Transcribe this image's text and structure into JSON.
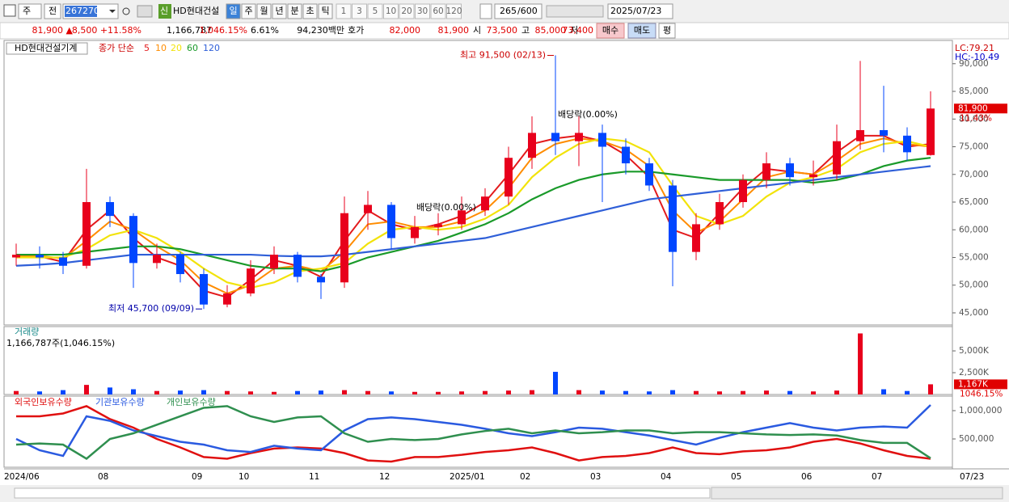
{
  "toolbar": {
    "period": "주",
    "prev": "전",
    "code": "267270",
    "badge": "신",
    "name": "HD현대건설",
    "units": [
      "일",
      "주",
      "월",
      "년",
      "분",
      "초",
      "틱"
    ],
    "minutes": [
      "1",
      "3",
      "5",
      "10",
      "20",
      "30",
      "60",
      "120"
    ],
    "count": "265",
    "max": "/600",
    "date": "2025/07/23"
  },
  "info": {
    "price": "81,900 ▲",
    "change": "8,500 +11.58%",
    "volume": "1,166,787",
    "volume_ratio": "1,046.15%",
    "turnover": "6.61%",
    "amount": "94,230백만",
    "quote_label": "호가",
    "ask": "82,000",
    "bid": "81,900",
    "open_label": "시",
    "open": "73,500",
    "high_label": "고",
    "high": "85,000",
    "low_label": "저",
    "low": "73,400",
    "buy": "매수",
    "sell": "매도",
    "avg": "평"
  },
  "chart_data": [
    {
      "type": "candlestick",
      "title": "HD현대건설기계",
      "ma_label": "종가 단순",
      "categories": [
        "2024/06",
        null,
        null,
        null,
        "08",
        null,
        null,
        null,
        "09",
        null,
        "10",
        null,
        null,
        "11",
        null,
        null,
        "12",
        null,
        null,
        "2025/01",
        null,
        null,
        "02",
        null,
        null,
        "03",
        null,
        null,
        "04",
        null,
        null,
        "05",
        null,
        null,
        "06",
        null,
        null,
        "07",
        null,
        null
      ],
      "open": [
        55000,
        55500,
        55000,
        53500,
        65000,
        62500,
        54000,
        55500,
        52000,
        46500,
        48500,
        53000,
        55500,
        51500,
        50500,
        63000,
        64500,
        58500,
        60500,
        61000,
        63500,
        66000,
        73000,
        77500,
        76000,
        77500,
        75000,
        72000,
        68000,
        56000,
        61000,
        65000,
        69000,
        72000,
        69500,
        70000,
        76000,
        78000,
        77000,
        73500
      ],
      "high": [
        57500,
        57000,
        56000,
        71000,
        66000,
        63000,
        57500,
        56000,
        53000,
        50000,
        54500,
        57000,
        56000,
        52000,
        66000,
        67000,
        65000,
        62500,
        63000,
        66000,
        67500,
        75000,
        80500,
        91500,
        80500,
        79000,
        76500,
        73000,
        69000,
        63000,
        66500,
        70000,
        74000,
        73000,
        72500,
        79000,
        90500,
        86000,
        78500,
        85000
      ],
      "low": [
        53500,
        53000,
        52000,
        53000,
        60500,
        49500,
        53000,
        50500,
        45700,
        46000,
        48000,
        52000,
        50500,
        47500,
        49500,
        60000,
        56500,
        57500,
        59000,
        60000,
        62500,
        64500,
        71000,
        73500,
        71500,
        65000,
        70000,
        67000,
        49800,
        54500,
        60000,
        64000,
        67500,
        68000,
        68000,
        69000,
        74500,
        74000,
        72500,
        73400
      ],
      "close": [
        55500,
        55000,
        53500,
        65000,
        62500,
        54000,
        55500,
        52000,
        46500,
        48500,
        53000,
        55500,
        51500,
        50500,
        63000,
        64500,
        58500,
        60500,
        61000,
        63500,
        66000,
        73000,
        77500,
        76000,
        77500,
        75000,
        72000,
        68000,
        56000,
        61000,
        65000,
        69000,
        72000,
        69500,
        70000,
        76000,
        78000,
        77000,
        74000,
        81900
      ],
      "series": [
        {
          "name": "5",
          "color": "#e31a1c",
          "values": [
            55000,
            55200,
            54200,
            60000,
            63500,
            58500,
            55000,
            53500,
            49000,
            47800,
            51000,
            54500,
            53500,
            51500,
            58000,
            63500,
            61000,
            60000,
            61000,
            62500,
            65000,
            70000,
            75500,
            76500,
            77000,
            76000,
            73500,
            69500,
            60000,
            58500,
            63000,
            67500,
            71000,
            70500,
            70000,
            74000,
            77000,
            77000,
            75000,
            75500
          ]
        },
        {
          "name": "10",
          "color": "#ff8c00",
          "values": [
            55200,
            55300,
            54800,
            58000,
            61500,
            60000,
            57000,
            54500,
            50500,
            48500,
            50000,
            53000,
            53500,
            52500,
            56000,
            61000,
            61500,
            60500,
            60500,
            61500,
            63500,
            67500,
            73000,
            75500,
            76500,
            76000,
            74500,
            71500,
            63500,
            59500,
            61500,
            65500,
            69500,
            70500,
            70000,
            72500,
            75500,
            76500,
            75500,
            75000
          ]
        },
        {
          "name": "20",
          "color": "#f2e30a",
          "values": [
            55000,
            55000,
            55000,
            56500,
            59000,
            60000,
            58500,
            56000,
            53000,
            50500,
            49500,
            50500,
            52500,
            53000,
            54000,
            57500,
            60000,
            60500,
            60000,
            60500,
            62000,
            64500,
            69500,
            73000,
            75500,
            76500,
            76000,
            74000,
            68000,
            62500,
            61000,
            62500,
            66000,
            68500,
            69500,
            71000,
            74000,
            75500,
            76000,
            75000
          ]
        },
        {
          "name": "60",
          "color": "#1a9a2a",
          "values": [
            55500,
            55500,
            55500,
            56000,
            56500,
            57000,
            57000,
            56500,
            55500,
            54500,
            53500,
            53000,
            53000,
            52500,
            53500,
            55000,
            56000,
            57000,
            58000,
            59500,
            61000,
            63000,
            65500,
            67500,
            69000,
            70000,
            70500,
            70500,
            70000,
            69500,
            69000,
            69000,
            69000,
            69000,
            68500,
            69000,
            70000,
            71500,
            72500,
            73000
          ]
        },
        {
          "name": "120",
          "color": "#2f5fd8",
          "values": [
            53500,
            53700,
            54000,
            54500,
            55000,
            55500,
            55500,
            55500,
            55500,
            55500,
            55500,
            55300,
            55200,
            55200,
            55500,
            56000,
            56500,
            57000,
            57500,
            58000,
            58500,
            59500,
            60500,
            61500,
            62500,
            63500,
            64500,
            65500,
            66000,
            66500,
            67000,
            67500,
            68000,
            68500,
            69000,
            69500,
            70000,
            70500,
            71000,
            71500
          ]
        }
      ],
      "up_color": "#e8001c",
      "down_color": "#0046ff",
      "ylim": [
        43100,
        92450
      ],
      "yticks": [
        {
          "value": 45000,
          "label": "45,000"
        },
        {
          "value": 50000,
          "label": "50,000"
        },
        {
          "value": 55000,
          "label": "55,000"
        },
        {
          "value": 60000,
          "label": "60,000"
        },
        {
          "value": 65000,
          "label": "65,000"
        },
        {
          "value": 70000,
          "label": "70,000"
        },
        {
          "value": 75000,
          "label": "75,000"
        },
        {
          "value": 80000,
          "label": "80,000"
        },
        {
          "value": 85000,
          "label": "85,000"
        },
        {
          "value": 90000,
          "label": "90,000"
        }
      ],
      "high_note": "최고 91,500 (02/13)",
      "low_note": "최저 45,700 (09/09)",
      "dividend_notes": [
        "배당락(0.00%)",
        "배당락(0.00%)"
      ],
      "lc": "LC:79.21",
      "hc": "HC:-10.49",
      "last_label": "81,900",
      "last_change": "11.43%"
    },
    {
      "type": "bar",
      "title": "거래량",
      "subtitle": "1,166,787주(1,046.15%)",
      "values": [
        400,
        350,
        500,
        1100,
        800,
        600,
        400,
        450,
        500,
        400,
        350,
        300,
        400,
        450,
        500,
        400,
        350,
        300,
        300,
        350,
        400,
        450,
        500,
        2600,
        500,
        450,
        400,
        350,
        500,
        400,
        350,
        400,
        450,
        400,
        350,
        450,
        7000,
        600,
        400,
        1167
      ],
      "ylim": [
        0,
        7600
      ],
      "yticks": [
        {
          "value": 2500,
          "label": "2,500K"
        },
        {
          "value": 5000,
          "label": "5,000K"
        }
      ],
      "last_label": "1,167K",
      "last_pct": "1046.15%"
    },
    {
      "type": "line",
      "series": [
        {
          "name": "외국인보유수량",
          "color": "#e01010",
          "values": [
            900000,
            900000,
            950000,
            1080000,
            850000,
            700000,
            500000,
            350000,
            180000,
            150000,
            250000,
            330000,
            350000,
            330000,
            250000,
            120000,
            100000,
            180000,
            180000,
            220000,
            270000,
            300000,
            350000,
            250000,
            120000,
            180000,
            200000,
            250000,
            350000,
            250000,
            230000,
            280000,
            300000,
            350000,
            450000,
            500000,
            420000,
            300000,
            200000,
            150000
          ]
        },
        {
          "name": "기관보유수량",
          "color": "#2a5ae0",
          "values": [
            500000,
            300000,
            200000,
            900000,
            820000,
            650000,
            550000,
            450000,
            400000,
            300000,
            270000,
            380000,
            330000,
            300000,
            650000,
            850000,
            880000,
            850000,
            800000,
            750000,
            680000,
            600000,
            550000,
            620000,
            700000,
            680000,
            620000,
            560000,
            480000,
            400000,
            520000,
            620000,
            700000,
            780000,
            700000,
            650000,
            700000,
            720000,
            700000,
            1100000
          ]
        },
        {
          "name": "개인보유수량",
          "color": "#2f8f4f",
          "values": [
            400000,
            420000,
            400000,
            150000,
            500000,
            600000,
            750000,
            900000,
            1050000,
            1080000,
            900000,
            800000,
            880000,
            900000,
            600000,
            450000,
            500000,
            480000,
            500000,
            580000,
            640000,
            680000,
            600000,
            650000,
            600000,
            620000,
            650000,
            650000,
            600000,
            620000,
            620000,
            600000,
            580000,
            570000,
            580000,
            560000,
            480000,
            430000,
            430000,
            160000
          ]
        }
      ],
      "ylim": [
        0,
        1214000
      ],
      "yticks": [
        {
          "value": 500000,
          "label": "500,000"
        },
        {
          "value": 1000000,
          "label": "1,000,000"
        }
      ],
      "end_label": "07/23"
    }
  ]
}
